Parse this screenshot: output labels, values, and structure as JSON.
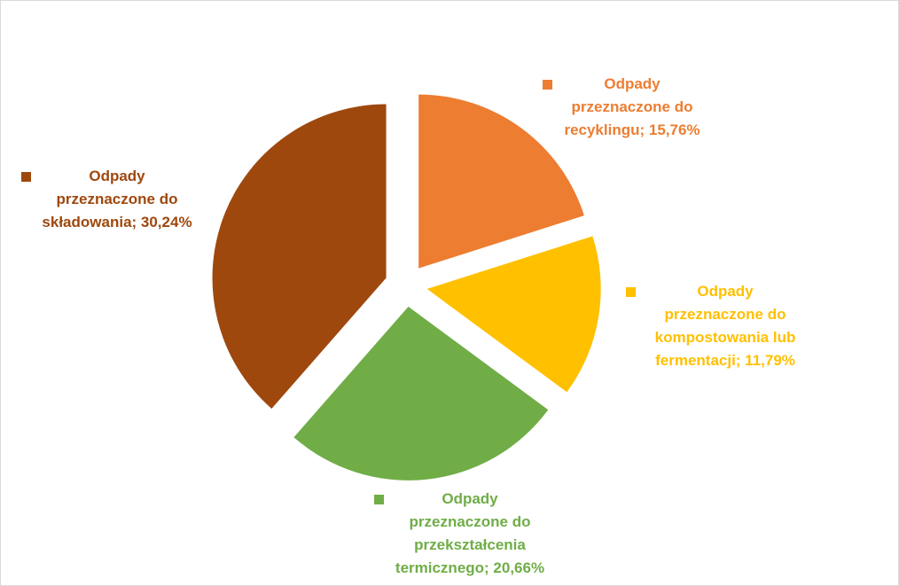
{
  "chart_data": {
    "type": "pie",
    "title": "",
    "legend": "none",
    "slices": [
      {
        "label": "Odpady przeznaczone do recyklingu",
        "value": 15.76,
        "percent_label": "15,76%",
        "color": "#ED7D31"
      },
      {
        "label": "Odpady przeznaczone do kompostowania lub fermentacji",
        "value": 11.79,
        "percent_label": "11,79%",
        "color": "#FFC000"
      },
      {
        "label": "Odpady przeznaczone do przekształcenia termicznego",
        "value": 20.66,
        "percent_label": "20,66%",
        "color": "#70AD47"
      },
      {
        "label": "Odpady przeznaczone do składowania",
        "value": 30.24,
        "percent_label": "30,24%",
        "color": "#9E480E"
      }
    ],
    "data_labels": [
      "Odpady\nprzeznaczone do\nrecyklingu; 15,76%",
      "Odpady\nprzeznaczone do\nkompostowania lub\nfermentacji; 11,79%",
      "Odpady\nprzeznaczone do\nprzekształcenia\ntermicznego; 20,66%",
      "Odpady\nprzeznaczone do\nskładowania; 30,24%"
    ]
  }
}
